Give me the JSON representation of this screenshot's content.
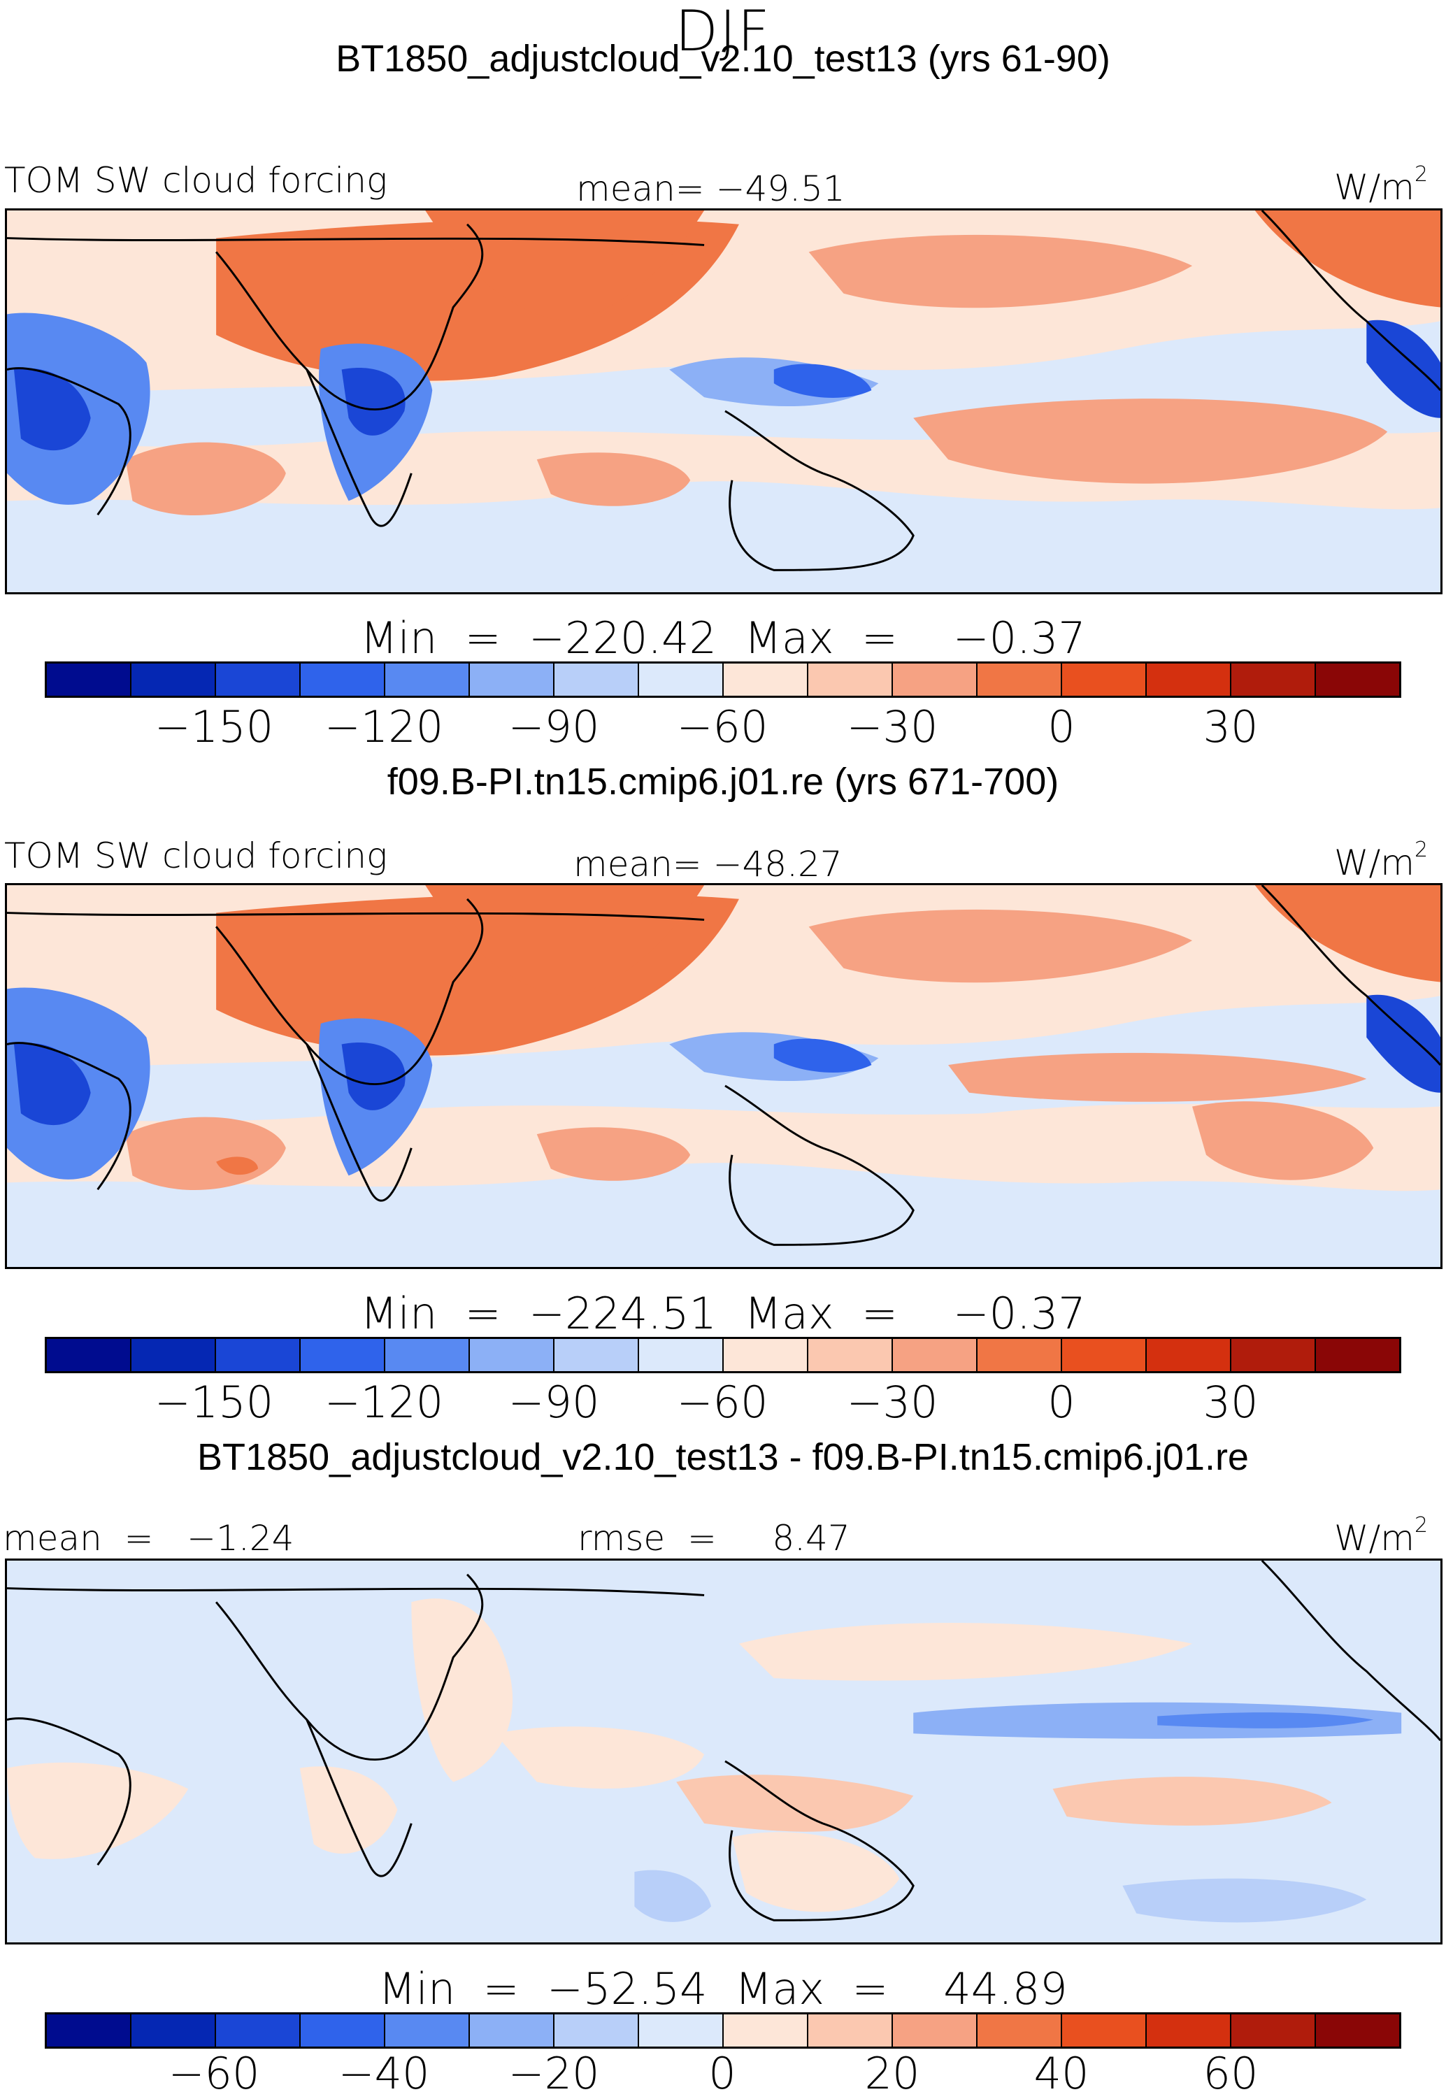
{
  "season": "DJF",
  "panels": [
    {
      "title": "BT1850_adjustcloud_v2.10_test13 (yrs 61-90)",
      "left_label": "TOM SW cloud forcing",
      "center_label": "mean= −49.51",
      "units": "W/m",
      "units_sup": "2",
      "min_max": "Min  =  −220.42  Max  =    −0.37",
      "colorbar_ticks": [
        "−150",
        "−120",
        "−90",
        "−60",
        "−30",
        "0",
        "30"
      ]
    },
    {
      "title": "f09.B-PI.tn15.cmip6.j01.re (yrs 671-700)",
      "left_label": "TOM SW cloud forcing",
      "center_label": "mean= −48.27",
      "units": "W/m",
      "units_sup": "2",
      "min_max": "Min  =  −224.51  Max  =    −0.37",
      "colorbar_ticks": [
        "−150",
        "−120",
        "−90",
        "−60",
        "−30",
        "0",
        "30"
      ]
    },
    {
      "title": "BT1850_adjustcloud_v2.10_test13 - f09.B-PI.tn15.cmip6.j01.re",
      "left_label": "mean  =   −1.24",
      "center_label": "rmse  =     8.47",
      "units": "W/m",
      "units_sup": "2",
      "min_max": "Min  =  −52.54  Max  =    44.89",
      "colorbar_ticks": [
        "−60",
        "−40",
        "−20",
        "0",
        "20",
        "40",
        "60"
      ]
    }
  ],
  "colorbar_colors": [
    "#000c8f",
    "#0527b3",
    "#1a46d6",
    "#2f63eb",
    "#5889f2",
    "#8cb0f6",
    "#b8cff9",
    "#dce9fb",
    "#fde6d8",
    "#fbc8b0",
    "#f6a283",
    "#f07645",
    "#e9501f",
    "#d4300f",
    "#b01c0c",
    "#8a0606"
  ]
}
